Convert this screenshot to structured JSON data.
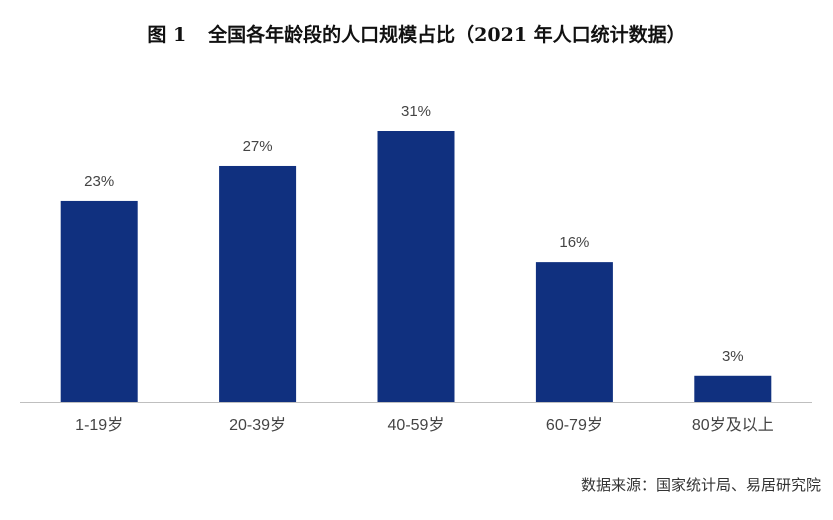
{
  "title": {
    "figure_label": "图 1",
    "text": "全国各年龄段的人口规模占比（2021 年人口统计数据）"
  },
  "source": "数据来源：国家统计局、易居研究院",
  "colors": {
    "bar": "#10307f",
    "axis": "#bfbfbf",
    "label": "#444444"
  },
  "chart_data": {
    "type": "bar",
    "title": "全国各年龄段的人口规模占比（2021 年人口统计数据）",
    "categories": [
      "1-19岁",
      "20-39岁",
      "40-59岁",
      "60-79岁",
      "80岁及以上"
    ],
    "values": [
      23,
      27,
      31,
      16,
      3
    ],
    "data_labels": [
      "23%",
      "27%",
      "31%",
      "16%",
      "3%"
    ],
    "ylim": [
      0,
      31
    ],
    "grid": false,
    "xlabel": "",
    "ylabel": ""
  }
}
